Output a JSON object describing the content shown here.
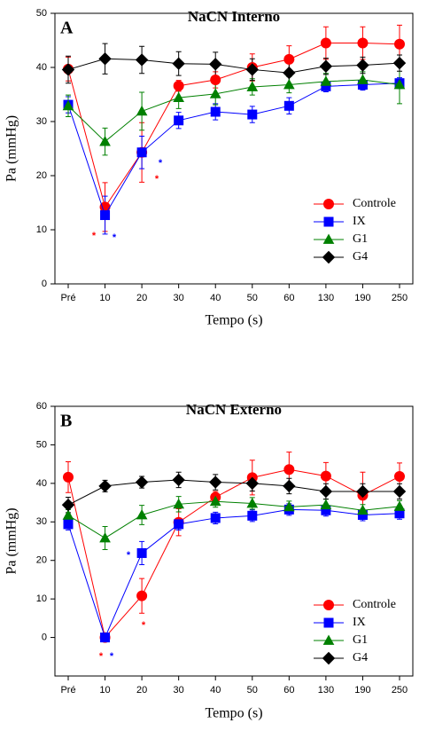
{
  "chart_data": [
    {
      "type": "line",
      "panel": "A",
      "title": "NaCN Interno",
      "x_label": "Tempo (s)",
      "y_label": "Pa (mmHg)",
      "categories": [
        "Pré",
        "10",
        "20",
        "30",
        "40",
        "50",
        "60",
        "130",
        "190",
        "250"
      ],
      "ylim": [
        0,
        50
      ],
      "yticks": [
        0,
        10,
        20,
        30,
        40,
        50
      ],
      "grid": false,
      "legend": "lower right",
      "series": [
        {
          "name": "Controle",
          "color": "#ff0000",
          "marker": "circle",
          "values": [
            39.7,
            14.2,
            24.3,
            36.6,
            37.7,
            40.0,
            41.5,
            44.5,
            44.5,
            44.3
          ],
          "errors": [
            2.2,
            4.5,
            5.5,
            1,
            1.5,
            2.5,
            2.5,
            3,
            3,
            3.5
          ]
        },
        {
          "name": "IX",
          "color": "#0000ff",
          "marker": "square",
          "values": [
            33.1,
            12.7,
            24.3,
            30.2,
            31.8,
            31.3,
            32.9,
            36.5,
            36.8,
            37.1
          ],
          "errors": [
            1.5,
            3.5,
            3,
            1.5,
            1.5,
            1.5,
            1.5,
            1,
            1,
            1
          ]
        },
        {
          "name": "G1",
          "color": "#008000",
          "marker": "triangle",
          "values": [
            32.9,
            26.3,
            31.9,
            34.4,
            35.1,
            36.4,
            36.8,
            37.4,
            37.7,
            36.8
          ],
          "errors": [
            2,
            2.5,
            3.5,
            2,
            2,
            1.5,
            1.5,
            1.5,
            1.5,
            3.5
          ]
        },
        {
          "name": "G4",
          "color": "#000000",
          "marker": "diamond",
          "values": [
            39.6,
            41.6,
            41.4,
            40.7,
            40.6,
            39.6,
            39.0,
            40.2,
            40.4,
            40.8
          ],
          "errors": [
            2.5,
            2.8,
            2.5,
            2.2,
            2.2,
            2,
            2,
            1.5,
            1.5,
            1.5
          ]
        }
      ],
      "annotations": [
        {
          "text": "*",
          "color": "#ff0000"
        },
        {
          "text": "*",
          "color": "#0000ff"
        },
        {
          "text": "*",
          "color": "#0000ff"
        },
        {
          "text": "*",
          "color": "#ff0000"
        }
      ]
    },
    {
      "type": "line",
      "panel": "B",
      "title": "NaCN Externo",
      "x_label": "Tempo (s)",
      "y_label": "Pa (mmHg)",
      "categories": [
        "Pré",
        "10",
        "20",
        "30",
        "40",
        "50",
        "60",
        "130",
        "190",
        "250"
      ],
      "ylim": [
        -10,
        60
      ],
      "yticks": [
        0,
        10,
        20,
        30,
        40,
        50,
        60
      ],
      "grid": false,
      "legend": "lower right",
      "series": [
        {
          "name": "Controle",
          "color": "#ff0000",
          "marker": "circle",
          "values": [
            41.6,
            0,
            10.8,
            29.9,
            36.4,
            41.5,
            43.6,
            41.9,
            36.9,
            41.8
          ],
          "errors": [
            4,
            0.5,
            4.5,
            3.5,
            1.5,
            4.5,
            4.5,
            3.5,
            6,
            3.5
          ]
        },
        {
          "name": "IX",
          "color": "#0000ff",
          "marker": "square",
          "values": [
            29.4,
            0,
            21.9,
            29.4,
            31.0,
            31.6,
            33.2,
            33.0,
            31.8,
            32.2
          ],
          "errors": [
            1.5,
            0.5,
            3,
            1.5,
            1.5,
            1.5,
            1.5,
            1.5,
            1.5,
            1.5
          ]
        },
        {
          "name": "G1",
          "color": "#008000",
          "marker": "triangle",
          "values": [
            31.7,
            25.8,
            31.8,
            34.6,
            35.3,
            34.8,
            33.9,
            34.4,
            33.0,
            34.0
          ],
          "errors": [
            1.5,
            3,
            2.5,
            2,
            1.5,
            1.5,
            1.5,
            1.5,
            1.5,
            1.5
          ]
        },
        {
          "name": "G4",
          "color": "#000000",
          "marker": "diamond",
          "values": [
            34.4,
            39.3,
            40.3,
            40.9,
            40.3,
            40.0,
            39.3,
            37.9,
            37.9,
            37.9
          ],
          "errors": [
            2,
            1.5,
            1.5,
            2,
            2,
            2,
            2,
            2,
            2,
            2
          ]
        }
      ],
      "annotations": [
        {
          "text": "*",
          "color": "#0000ff"
        },
        {
          "text": "*",
          "color": "#ff0000"
        },
        {
          "text": "*",
          "color": "#ff0000"
        },
        {
          "text": "*",
          "color": "#0000ff"
        }
      ]
    }
  ]
}
